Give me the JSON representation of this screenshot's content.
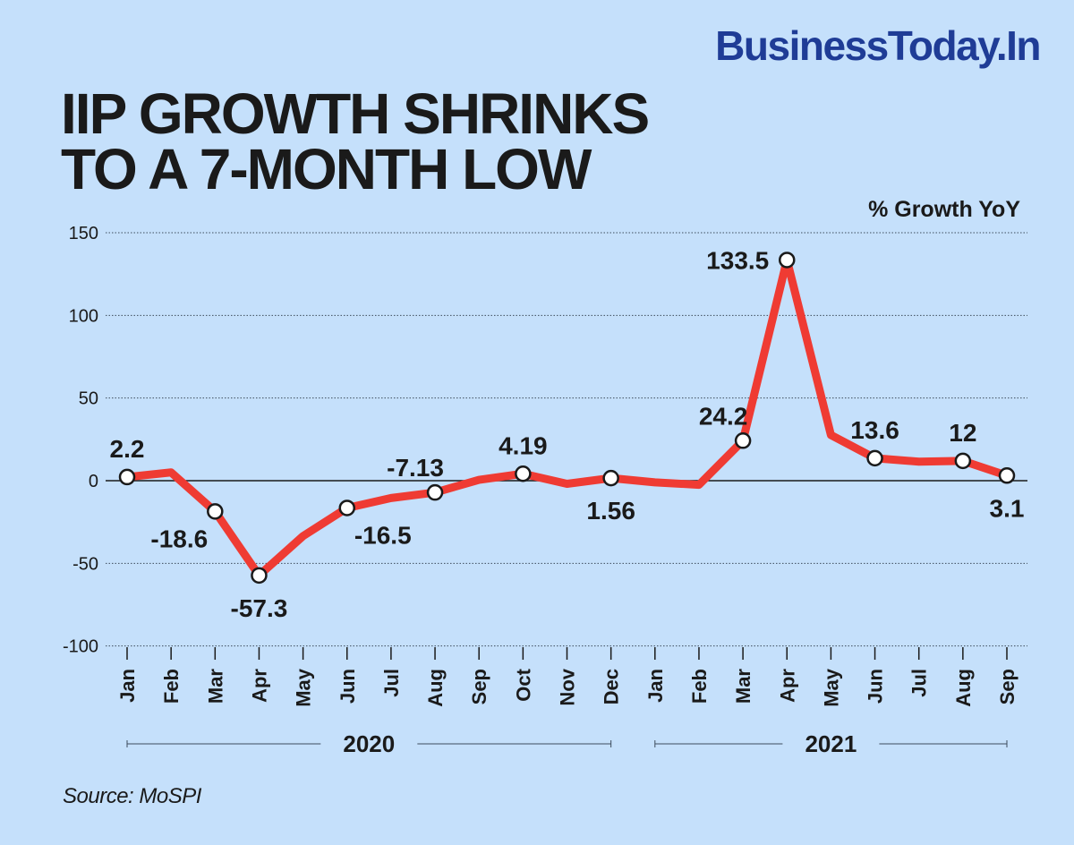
{
  "brand": "BusinessToday.In",
  "title_lines": [
    "IIP GROWTH SHRINKS",
    "TO A 7-MONTH LOW"
  ],
  "source": "Source: MoSPI",
  "chart_data": {
    "type": "line",
    "title": "IIP GROWTH SHRINKS TO A 7-MONTH LOW",
    "ylabel": "% Growth YoY",
    "ylim": [
      -100,
      150
    ],
    "yticks": [
      150,
      100,
      50,
      0,
      -50,
      -100
    ],
    "grid": true,
    "categories": [
      "Jan",
      "Feb",
      "Mar",
      "Apr",
      "May",
      "Jun",
      "Jul",
      "Aug",
      "Sep",
      "Oct",
      "Nov",
      "Dec",
      "Jan",
      "Feb",
      "Mar",
      "Apr",
      "May",
      "Jun",
      "Jul",
      "Aug",
      "Sep"
    ],
    "years": [
      {
        "label": "2020",
        "from": 0,
        "to": 11
      },
      {
        "label": "2021",
        "from": 12,
        "to": 20
      }
    ],
    "series": [
      {
        "values": [
          2.2,
          5,
          -18.6,
          -57.3,
          -33.5,
          -16.5,
          -10.5,
          -7.13,
          0.5,
          4.19,
          -1.9,
          1.56,
          -1,
          -2.5,
          24.2,
          133.5,
          27.6,
          13.6,
          11.5,
          12,
          3.1
        ],
        "color": "#ef3b33"
      }
    ],
    "markers": [
      0,
      2,
      3,
      5,
      7,
      9,
      11,
      14,
      15,
      17,
      19,
      20
    ],
    "data_labels": [
      {
        "index": 0,
        "text": "2.2",
        "pos": "above"
      },
      {
        "index": 2,
        "text": "-18.6",
        "pos": "below-left"
      },
      {
        "index": 3,
        "text": "-57.3",
        "pos": "below"
      },
      {
        "index": 5,
        "text": "-16.5",
        "pos": "below-right"
      },
      {
        "index": 7,
        "text": "-7.13",
        "pos": "above-left"
      },
      {
        "index": 9,
        "text": "4.19",
        "pos": "above"
      },
      {
        "index": 11,
        "text": "1.56",
        "pos": "below"
      },
      {
        "index": 14,
        "text": "24.2",
        "pos": "above-left"
      },
      {
        "index": 15,
        "text": "133.5",
        "pos": "left"
      },
      {
        "index": 17,
        "text": "13.6",
        "pos": "above"
      },
      {
        "index": 19,
        "text": "12",
        "pos": "above"
      },
      {
        "index": 20,
        "text": "3.1",
        "pos": "below"
      }
    ]
  }
}
